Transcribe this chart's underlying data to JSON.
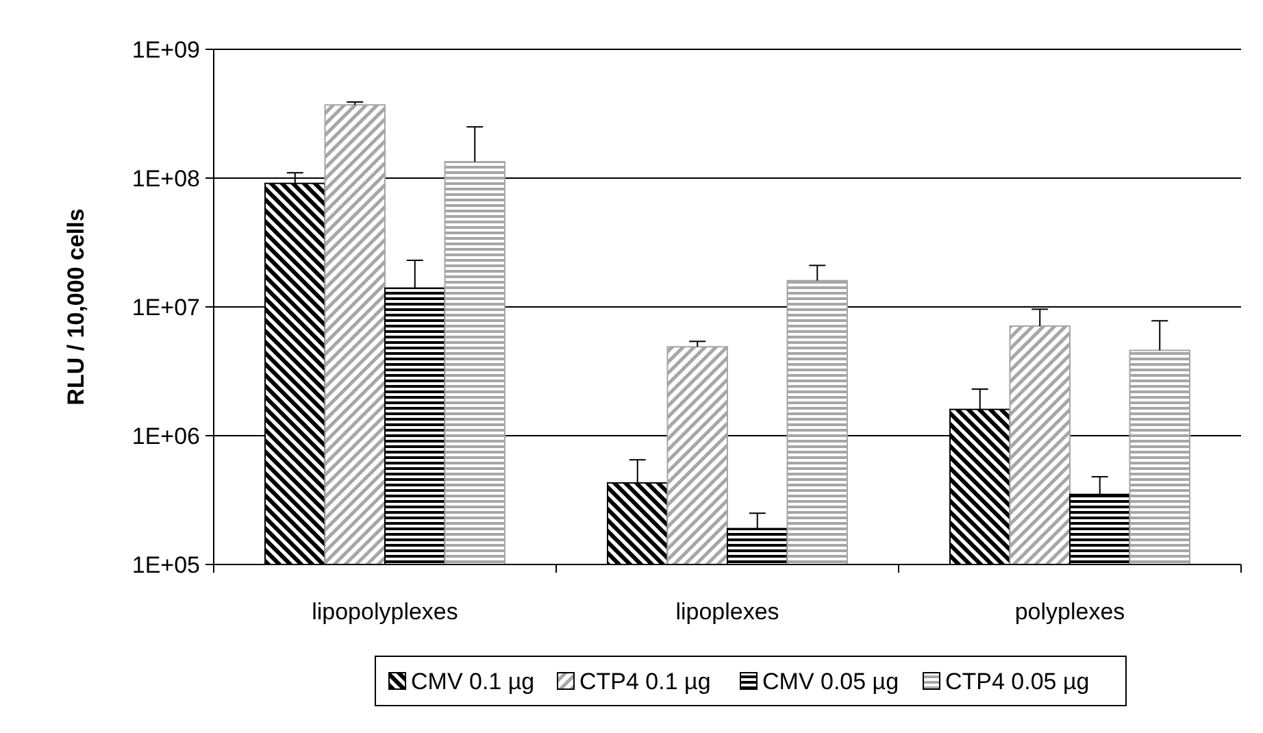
{
  "chart_data": {
    "type": "bar",
    "ylabel": "RLU / 10,000 cells",
    "categories": [
      "lipopolyplexes",
      "lipoplexes",
      "polyplexes"
    ],
    "log": true,
    "ylim": [
      100000,
      1000000000
    ],
    "yticks": [
      {
        "value": 100000,
        "label": "1E+05"
      },
      {
        "value": 1000000,
        "label": "1E+06"
      },
      {
        "value": 10000000,
        "label": "1E+07"
      },
      {
        "value": 100000000,
        "label": "1E+08"
      },
      {
        "value": 1000000000,
        "label": "1E+09"
      }
    ],
    "grid": "y",
    "legend": "bottom",
    "series": [
      {
        "name": "CMV 0.1 µg",
        "color": "#000000",
        "values": [
          91000000,
          430000,
          1600000
        ],
        "errors": [
          [
            91000000,
            110000000
          ],
          [
            430000,
            650000
          ],
          [
            1600000,
            2300000
          ]
        ]
      },
      {
        "name": "CTP4 0.1 µg",
        "color": "#a6a6a6",
        "values": [
          370000000,
          4900000,
          7100000
        ],
        "errors": [
          [
            370000000,
            390000000
          ],
          [
            4900000,
            5400000
          ],
          [
            7100000,
            9600000
          ]
        ]
      },
      {
        "name": "CMV 0.05 µg",
        "color": "#000000",
        "values": [
          14000000,
          190000,
          350000
        ],
        "errors": [
          [
            14000000,
            23000000
          ],
          [
            190000,
            250000
          ],
          [
            350000,
            480000
          ]
        ]
      },
      {
        "name": "CTP4 0.05 µg",
        "color": "#a6a6a6",
        "values": [
          134000000,
          16000000,
          4600000
        ],
        "errors": [
          [
            134000000,
            250000000
          ],
          [
            16000000,
            21000000
          ],
          [
            4600000,
            7800000
          ]
        ]
      }
    ]
  }
}
